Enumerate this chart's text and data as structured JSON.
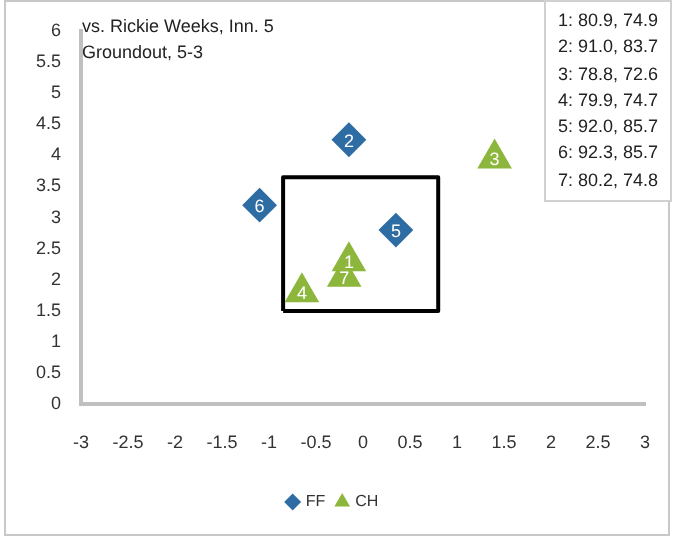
{
  "chart_data": {
    "type": "scatter",
    "annotations": [
      "vs. Rickie Weeks, Inn. 5",
      "Groundout, 5-3",
      "1: 80.9, 74.9",
      "2: 91.0, 83.7",
      "3: 78.8, 72.6",
      "4: 79.9, 74.7",
      "5: 92.0, 85.7",
      "6: 92.3, 85.7",
      "7: 80.2, 74.8",
      {
        "text": "2",
        "x": -0.15,
        "y": 4.25
      },
      {
        "text": "5",
        "x": 0.35,
        "y": 2.8
      },
      {
        "text": "6",
        "x": -1.1,
        "y": 3.2
      },
      {
        "text": "1",
        "x": -0.15,
        "y": 2.3
      },
      {
        "text": "3",
        "x": 1.4,
        "y": 3.95
      },
      {
        "text": "4",
        "x": -0.65,
        "y": 1.8
      },
      {
        "text": "7",
        "x": -0.2,
        "y": 2.05
      }
    ],
    "series": [
      {
        "name": "FF",
        "color": "#2e6ca4",
        "marker": "diamond",
        "x": [
          -0.15,
          0.35,
          -1.1
        ],
        "values": [
          4.25,
          2.8,
          3.2
        ]
      },
      {
        "name": "CH",
        "color": "#8db63c",
        "marker": "triangle",
        "x": [
          -0.15,
          1.4,
          -0.65,
          -0.2
        ],
        "values": [
          2.3,
          3.95,
          1.8,
          2.05
        ]
      },
      {
        "type": "line",
        "color": "#000000",
        "marker": "none",
        "x": [
          -0.85,
          -0.85,
          0.8,
          0.8
        ],
        "values": [
          1.5,
          3.65,
          3.65,
          1.5
        ]
      },
      {
        "type": "line",
        "color": "#000000",
        "marker": "none",
        "x": [
          -0.85,
          0.8
        ],
        "values": [
          1.5,
          1.5
        ]
      }
    ],
    "xlim": [
      -3,
      3
    ],
    "xticks": [
      -3,
      -2.5,
      -2,
      -1.5,
      -1,
      -0.5,
      0,
      0.5,
      1,
      1.5,
      2,
      2.5,
      3
    ],
    "ylim": [
      0,
      6
    ],
    "yticks": [
      0,
      0.5,
      1,
      1.5,
      2,
      2.5,
      3,
      3.5,
      4,
      4.5,
      5,
      5.5,
      6
    ],
    "grid": false,
    "legend": "bottom"
  }
}
